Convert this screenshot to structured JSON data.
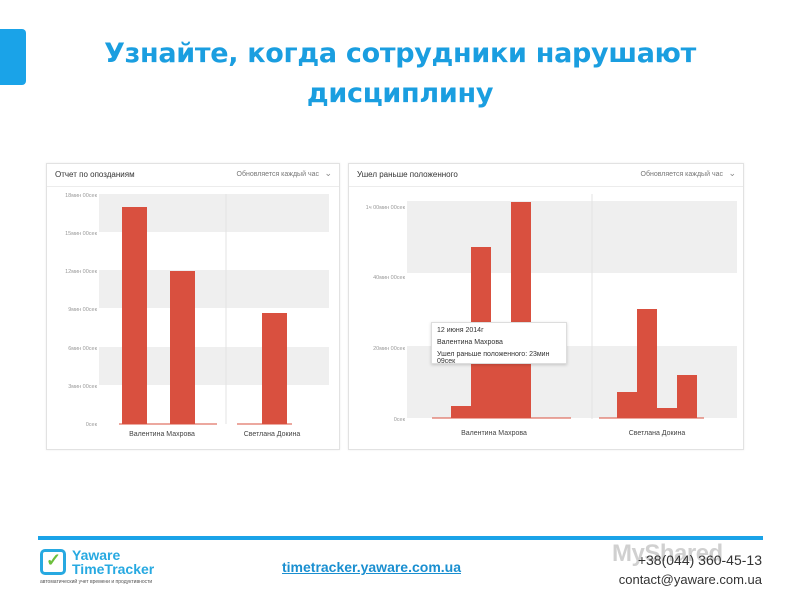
{
  "slide": {
    "title": "Узнайте, когда сотрудники нарушают дисциплину"
  },
  "panel1": {
    "title": "Отчет по опозданиям",
    "update_label": "Обновляется каждый час"
  },
  "panel2": {
    "title": "Ушел раньше положенного",
    "update_label": "Обновляется каждый час",
    "tooltip": {
      "date": "12 июня 2014г",
      "name": "Валентина Махрова",
      "value": "Ушел раньше положенного: 23мин 09сек"
    }
  },
  "footer": {
    "url": "timetracker.yaware.com.ua",
    "phone": "+38(044) 360-45-13",
    "email": "contact@yaware.com.ua",
    "logo_line1": "Yaware",
    "logo_line2": "TimeTracker",
    "logo_tagline": "автоматический учет времени и продуктивности",
    "watermark": "MyShared"
  },
  "chart_data": [
    {
      "type": "bar",
      "title": "Отчет по опозданиям",
      "categories": [
        "Валентина Махрова",
        "Светлана Докина"
      ],
      "yticks": [
        "0сек",
        "3мин 00сек",
        "6мин 00сек",
        "9мин 00сек",
        "12мин 00сек",
        "15мин 00сек",
        "18мин 00сек"
      ],
      "ylim_minutes": [
        0,
        18
      ],
      "series_values_minutes": [
        [
          17,
          0
        ],
        [
          12,
          0
        ],
        [
          0,
          8.7
        ]
      ],
      "bar_color": "#d9503f",
      "grid_bands": true
    },
    {
      "type": "bar",
      "title": "Ушел раньше положенного",
      "categories": [
        "Валентина Махрова",
        "Светлана Докина"
      ],
      "yticks": [
        "0сек",
        "20мин 00сек",
        "40мин 00сек",
        "1ч 00мин 00сек"
      ],
      "ylim_minutes": [
        0,
        63
      ],
      "bars_minutes": [
        {
          "category": 0,
          "value": 3.5
        },
        {
          "category": 0,
          "value": 47
        },
        {
          "category": 0,
          "value": 23.15
        },
        {
          "category": 0,
          "value": 61
        },
        {
          "category": 1,
          "value": 7
        },
        {
          "category": 1,
          "value": 30
        },
        {
          "category": 1,
          "value": 3
        },
        {
          "category": 1,
          "value": 12
        }
      ],
      "bar_color": "#d9503f",
      "grid_bands": true
    }
  ]
}
